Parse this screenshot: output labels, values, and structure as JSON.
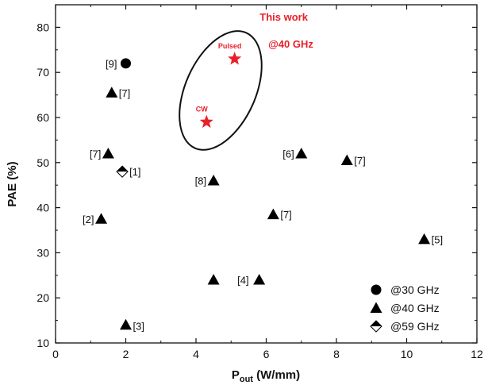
{
  "chart_data": {
    "type": "scatter",
    "title": "",
    "xlabel_main": "P",
    "xlabel_sub": "out",
    "xlabel_unit": " (W/mm)",
    "ylabel": "PAE (%)",
    "xlim": [
      0,
      12
    ],
    "ylim": [
      10,
      85
    ],
    "xticks": [
      "0",
      "2",
      "4",
      "6",
      "8",
      "10",
      "12"
    ],
    "yticks": [
      "10",
      "20",
      "30",
      "40",
      "50",
      "60",
      "70",
      "80"
    ],
    "xtick_values": [
      0,
      2,
      4,
      6,
      8,
      10,
      12
    ],
    "ytick_values": [
      10,
      20,
      30,
      40,
      50,
      60,
      70,
      80
    ],
    "grid": false,
    "legend_position": "bottom-right",
    "series": [
      {
        "name": "@30 GHz",
        "marker": "circle",
        "color": "#000000",
        "points": [
          {
            "x": 2.0,
            "y": 72,
            "label": "[9]"
          }
        ]
      },
      {
        "name": "@40 GHz",
        "marker": "triangle",
        "color": "#000000",
        "points": [
          {
            "x": 1.6,
            "y": 65.5,
            "label": "[7]"
          },
          {
            "x": 1.5,
            "y": 52,
            "label": "[7]"
          },
          {
            "x": 1.3,
            "y": 37.5,
            "label": "[2]"
          },
          {
            "x": 2.0,
            "y": 14,
            "label": "[3]"
          },
          {
            "x": 4.5,
            "y": 24,
            "label": ""
          },
          {
            "x": 5.8,
            "y": 24,
            "label": "[4]"
          },
          {
            "x": 4.5,
            "y": 46,
            "label": "[8]"
          },
          {
            "x": 6.2,
            "y": 38.5,
            "label": "[7]"
          },
          {
            "x": 7.0,
            "y": 52,
            "label": "[6]"
          },
          {
            "x": 8.3,
            "y": 50.5,
            "label": "[7]"
          },
          {
            "x": 10.5,
            "y": 33,
            "label": "[5]"
          }
        ]
      },
      {
        "name": "@59 GHz",
        "marker": "half-diamond",
        "color": "#000000",
        "points": [
          {
            "x": 1.9,
            "y": 48,
            "label": "[1]"
          }
        ]
      },
      {
        "name": "",
        "marker": "star",
        "color": "#e8202a",
        "points": [
          {
            "x": 5.1,
            "y": 73,
            "label": "Pulsed"
          },
          {
            "x": 4.3,
            "y": 59,
            "label": "CW"
          }
        ]
      }
    ],
    "annotations": [
      {
        "text": "This work",
        "x": 6.5,
        "y": 81.5
      },
      {
        "text": "@40 GHz",
        "x": 6.7,
        "y": 75.5
      }
    ],
    "ellipse": {
      "cx": 4.7,
      "cy": 66,
      "rx_data": 1.0,
      "ry_data": 14
    }
  }
}
